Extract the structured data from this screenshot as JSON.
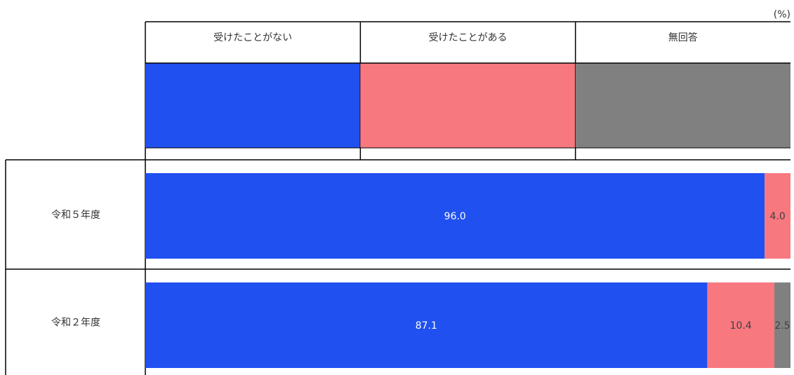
{
  "unit_label": "(%)",
  "chart_data": {
    "type": "bar",
    "orientation": "horizontal",
    "stacked": true,
    "xlim": [
      0,
      100
    ],
    "categories": [
      "令和５年度",
      "令和２年度"
    ],
    "series": [
      {
        "name": "受けたことがない",
        "color": "#2050F0",
        "values": [
          96.0,
          87.1
        ]
      },
      {
        "name": "受けたことがある",
        "color": "#F87880",
        "values": [
          4.0,
          10.4
        ]
      },
      {
        "name": "無回答",
        "color": "#808080",
        "values": [
          0.0,
          2.5
        ]
      }
    ],
    "data_labels": [
      [
        "96.0",
        "87.1"
      ],
      [
        "4.0",
        "10.4"
      ],
      [
        "",
        "2.5"
      ]
    ],
    "legend_position": "top",
    "grid": false
  }
}
